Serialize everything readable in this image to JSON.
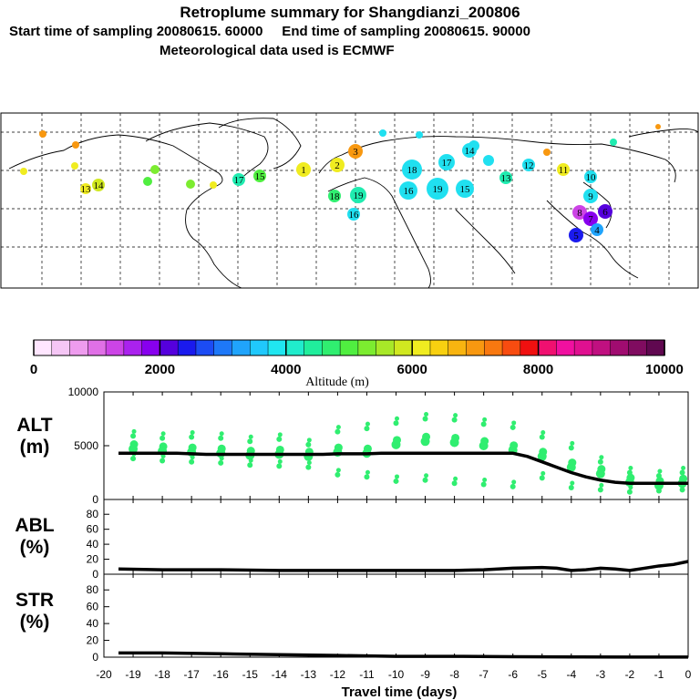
{
  "header": {
    "title": "Retroplume summary for Shangdianzi_200806",
    "line2": "Start time of sampling 20080615. 60000     End time of sampling 20080615. 90000",
    "line3": "Meteorological data used is ECMWF"
  },
  "map": {
    "description_labels": [
      "10",
      "11",
      "12",
      "13",
      "14",
      "15",
      "16",
      "17",
      "18",
      "19",
      "1",
      "2",
      "3",
      "4",
      "5",
      "6",
      "7",
      "8",
      "9"
    ],
    "plume_days": [
      "18",
      "19",
      "16",
      "15",
      "17",
      "14",
      "13",
      "12",
      "11",
      "10",
      "9",
      "8",
      "7",
      "6",
      "5",
      "4",
      "3",
      "2",
      "1"
    ],
    "colors": {
      "land_line": "#000000",
      "grid": "#000000"
    }
  },
  "colorbar": {
    "tick_labels": [
      "0",
      "2000",
      "4000",
      "6000",
      "8000",
      "10000"
    ],
    "label": "Altitude (m)",
    "colors": [
      "#ffe6ff",
      "#f5c6f5",
      "#ee9cee",
      "#e070e6",
      "#cc44e6",
      "#aa22ee",
      "#8800ee",
      "#5500dd",
      "#1a1aee",
      "#1c4cf4",
      "#1e78f8",
      "#20a4fc",
      "#20c8fc",
      "#20e6f0",
      "#20eccc",
      "#20ee9c",
      "#30ee70",
      "#50ee40",
      "#7cec30",
      "#a8e828",
      "#d0e820",
      "#f0ec20",
      "#f8d010",
      "#f8b410",
      "#f89810",
      "#f87810",
      "#f84c10",
      "#f01010",
      "#f01070",
      "#f010a0",
      "#e01090",
      "#c01080",
      "#a00c70",
      "#800c60",
      "#600850"
    ]
  },
  "chart_data": [
    {
      "type": "line",
      "name": "ALT",
      "ylabel": "ALT\n(m)",
      "ylabel_line1": "ALT",
      "ylabel_line2": "(m)",
      "ylim": [
        0,
        10000
      ],
      "yticks": [
        "10000",
        "5000",
        "0"
      ],
      "x": [
        -19.5,
        -19,
        -18.5,
        -18,
        -17.5,
        -17,
        -16.5,
        -16,
        -15.5,
        -15,
        -14.5,
        -14,
        -13.5,
        -13,
        -12.5,
        -12,
        -11.5,
        -11,
        -10.5,
        -10,
        -9.5,
        -9,
        -8.5,
        -8,
        -7.5,
        -7,
        -6.5,
        -6,
        -5.5,
        -5,
        -4.5,
        -4,
        -3.5,
        -3,
        -2.5,
        -2,
        -1.5,
        -1,
        -0.5,
        0
      ],
      "values": [
        4300,
        4300,
        4300,
        4300,
        4300,
        4250,
        4200,
        4200,
        4200,
        4200,
        4200,
        4200,
        4200,
        4200,
        4200,
        4250,
        4250,
        4250,
        4300,
        4300,
        4300,
        4300,
        4300,
        4300,
        4300,
        4300,
        4300,
        4300,
        4000,
        3500,
        3000,
        2500,
        2100,
        1800,
        1600,
        1500,
        1500,
        1500,
        1500,
        1500
      ],
      "scatter": [
        {
          "x": -19,
          "y": [
            5900,
            4700,
            3800
          ]
        },
        {
          "x": -18,
          "y": [
            5700,
            4500,
            3600
          ]
        },
        {
          "x": -17,
          "y": [
            5800,
            4400,
            3500
          ]
        },
        {
          "x": -16,
          "y": [
            5700,
            4300,
            3400
          ]
        },
        {
          "x": -15,
          "y": [
            5400,
            4100,
            3200
          ]
        },
        {
          "x": -14,
          "y": [
            5600,
            4200,
            3100
          ]
        },
        {
          "x": -13,
          "y": [
            5100,
            4000,
            3000
          ]
        },
        {
          "x": -12,
          "y": [
            6300,
            4400,
            2300
          ]
        },
        {
          "x": -11,
          "y": [
            6600,
            4300,
            2100
          ]
        },
        {
          "x": -10,
          "y": [
            7100,
            5100,
            1700
          ]
        },
        {
          "x": -9,
          "y": [
            7500,
            5400,
            1800
          ]
        },
        {
          "x": -8,
          "y": [
            7400,
            5300,
            1500
          ]
        },
        {
          "x": -7,
          "y": [
            7000,
            5000,
            1400
          ]
        },
        {
          "x": -6,
          "y": [
            6700,
            4600,
            1200
          ]
        },
        {
          "x": -5,
          "y": [
            5800,
            4000,
            2000
          ]
        },
        {
          "x": -4,
          "y": [
            4800,
            3000,
            1100
          ]
        },
        {
          "x": -3,
          "y": [
            3500,
            2400,
            900
          ]
        },
        {
          "x": -2,
          "y": [
            2500,
            1600,
            700
          ]
        },
        {
          "x": -1,
          "y": [
            2200,
            1300,
            800
          ]
        },
        {
          "x": -0.2,
          "y": [
            2500,
            1500,
            900
          ]
        }
      ]
    },
    {
      "type": "line",
      "name": "ABL",
      "ylabel_line1": "ABL",
      "ylabel_line2": "(%)",
      "ylim": [
        0,
        90
      ],
      "yticks": [
        "80",
        "60",
        "40",
        "20",
        "0"
      ],
      "x": [
        -19.5,
        -18,
        -16,
        -14,
        -12,
        -10,
        -8,
        -7,
        -6,
        -5,
        -4.5,
        -4,
        -3.5,
        -3,
        -2.5,
        -2,
        -1.5,
        -1,
        -0.5,
        0
      ],
      "values": [
        7,
        6,
        6,
        5,
        5,
        5,
        5,
        6,
        8,
        9,
        8,
        5,
        6,
        8,
        7,
        5,
        8,
        11,
        13,
        17
      ]
    },
    {
      "type": "line",
      "name": "STR",
      "ylabel_line1": "STR",
      "ylabel_line2": "(%)",
      "ylim": [
        0,
        90
      ],
      "yticks": [
        "80",
        "60",
        "40",
        "20",
        "0"
      ],
      "x": [
        -19.5,
        -18,
        -16,
        -14,
        -12,
        -10,
        -8,
        -6,
        -4,
        -2,
        0
      ],
      "values": [
        5,
        5,
        4,
        3,
        2,
        1,
        1,
        0.5,
        0.3,
        0.2,
        0.1
      ]
    }
  ],
  "xaxis": {
    "label": "Travel time (days)",
    "ticks": [
      "-20",
      "-19",
      "-18",
      "-17",
      "-16",
      "-15",
      "-14",
      "-13",
      "-12",
      "-11",
      "-10",
      "-9",
      "-8",
      "-7",
      "-6",
      "-5",
      "-4",
      "-3",
      "-2",
      "-1",
      "0"
    ]
  }
}
